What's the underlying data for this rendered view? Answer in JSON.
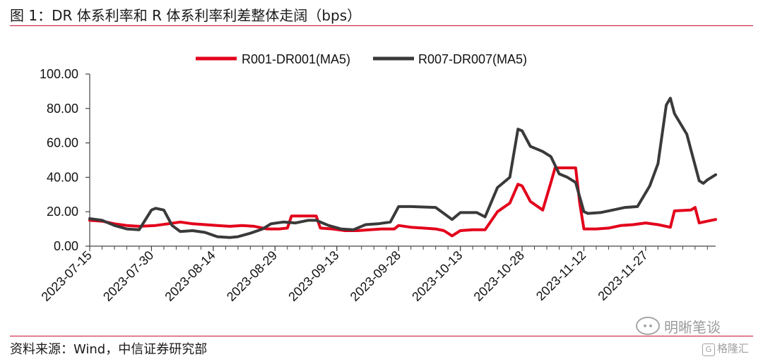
{
  "header": {
    "title": "图 1：DR 体系利率和 R 体系利率利差整体走阔（bps）"
  },
  "footer": {
    "source": "资料来源：Wind，中信证券研究部"
  },
  "watermark": {
    "brand": "明晰笔谈",
    "site": "格隆汇",
    "site_glyph": "G"
  },
  "colors": {
    "series1": "#e3001b",
    "series2": "#3a3a3a",
    "rule": "#c8102e"
  },
  "chart_data": {
    "type": "line",
    "title": "",
    "xlabel": "",
    "ylabel": "",
    "ylim": [
      0,
      100
    ],
    "yticks": [
      "0.00",
      "20.00",
      "40.00",
      "60.00",
      "80.00",
      "100.00"
    ],
    "x_start": "2023-07-15",
    "x_end": "2023-12-14",
    "xtick_labels": [
      "2023-07-15",
      "2023-07-30",
      "2023-08-14",
      "2023-08-29",
      "2023-09-13",
      "2023-09-28",
      "2023-10-13",
      "2023-10-28",
      "2023-11-12",
      "2023-11-27"
    ],
    "grid": false,
    "legend_position": "top",
    "series": [
      {
        "name": "R001-DR001(MA5)",
        "color": "#e3001b",
        "points": [
          [
            "2023-07-15",
            15
          ],
          [
            "2023-07-18",
            14.5
          ],
          [
            "2023-07-21",
            13
          ],
          [
            "2023-07-24",
            12
          ],
          [
            "2023-07-27",
            11.5
          ],
          [
            "2023-07-31",
            12
          ],
          [
            "2023-08-03",
            13
          ],
          [
            "2023-08-06",
            14
          ],
          [
            "2023-08-09",
            13
          ],
          [
            "2023-08-12",
            12.5
          ],
          [
            "2023-08-15",
            12
          ],
          [
            "2023-08-18",
            11.5
          ],
          [
            "2023-08-21",
            12
          ],
          [
            "2023-08-24",
            11.5
          ],
          [
            "2023-08-27",
            10
          ],
          [
            "2023-08-30",
            10
          ],
          [
            "2023-09-01",
            10.5
          ],
          [
            "2023-09-02",
            17.5
          ],
          [
            "2023-09-08",
            17.5
          ],
          [
            "2023-09-09",
            10.5
          ],
          [
            "2023-09-12",
            10
          ],
          [
            "2023-09-15",
            9
          ],
          [
            "2023-09-18",
            9
          ],
          [
            "2023-09-21",
            9.5
          ],
          [
            "2023-09-24",
            10
          ],
          [
            "2023-09-27",
            10
          ],
          [
            "2023-09-28",
            12
          ],
          [
            "2023-10-01",
            11
          ],
          [
            "2023-10-04",
            10.5
          ],
          [
            "2023-10-07",
            10
          ],
          [
            "2023-10-09",
            9
          ],
          [
            "2023-10-11",
            6
          ],
          [
            "2023-10-13",
            9
          ],
          [
            "2023-10-16",
            9.5
          ],
          [
            "2023-10-19",
            9.5
          ],
          [
            "2023-10-22",
            20
          ],
          [
            "2023-10-25",
            25
          ],
          [
            "2023-10-27",
            36
          ],
          [
            "2023-10-28",
            35
          ],
          [
            "2023-10-30",
            26
          ],
          [
            "2023-11-02",
            21
          ],
          [
            "2023-11-04",
            37
          ],
          [
            "2023-11-05",
            45.5
          ],
          [
            "2023-11-10",
            45.5
          ],
          [
            "2023-11-11",
            25
          ],
          [
            "2023-11-12",
            10
          ],
          [
            "2023-11-15",
            10
          ],
          [
            "2023-11-18",
            10.5
          ],
          [
            "2023-11-21",
            12
          ],
          [
            "2023-11-24",
            12.5
          ],
          [
            "2023-11-27",
            13.5
          ],
          [
            "2023-11-30",
            12.5
          ],
          [
            "2023-12-03",
            11
          ],
          [
            "2023-12-04",
            20.5
          ],
          [
            "2023-12-08",
            21
          ],
          [
            "2023-12-09",
            22.5
          ],
          [
            "2023-12-10",
            13.5
          ],
          [
            "2023-12-12",
            14.5
          ],
          [
            "2023-12-14",
            15.5
          ]
        ]
      },
      {
        "name": "R007-DR007(MA5)",
        "color": "#3a3a3a",
        "points": [
          [
            "2023-07-15",
            16
          ],
          [
            "2023-07-18",
            15
          ],
          [
            "2023-07-21",
            12
          ],
          [
            "2023-07-24",
            10
          ],
          [
            "2023-07-27",
            9.5
          ],
          [
            "2023-07-30",
            21
          ],
          [
            "2023-07-31",
            22
          ],
          [
            "2023-08-02",
            21
          ],
          [
            "2023-08-04",
            12
          ],
          [
            "2023-08-06",
            8.5
          ],
          [
            "2023-08-09",
            9
          ],
          [
            "2023-08-12",
            8
          ],
          [
            "2023-08-15",
            5.5
          ],
          [
            "2023-08-18",
            5
          ],
          [
            "2023-08-20",
            5.5
          ],
          [
            "2023-08-23",
            7.5
          ],
          [
            "2023-08-26",
            10
          ],
          [
            "2023-08-28",
            13
          ],
          [
            "2023-08-31",
            14
          ],
          [
            "2023-09-03",
            13.5
          ],
          [
            "2023-09-06",
            15
          ],
          [
            "2023-09-08",
            15
          ],
          [
            "2023-09-11",
            12
          ],
          [
            "2023-09-14",
            10
          ],
          [
            "2023-09-17",
            9.5
          ],
          [
            "2023-09-20",
            12.5
          ],
          [
            "2023-09-23",
            13
          ],
          [
            "2023-09-26",
            14
          ],
          [
            "2023-09-28",
            23
          ],
          [
            "2023-10-01",
            23
          ],
          [
            "2023-10-07",
            22.5
          ],
          [
            "2023-10-09",
            19
          ],
          [
            "2023-10-11",
            15.5
          ],
          [
            "2023-10-13",
            19.5
          ],
          [
            "2023-10-17",
            19.5
          ],
          [
            "2023-10-19",
            17
          ],
          [
            "2023-10-22",
            34
          ],
          [
            "2023-10-25",
            40
          ],
          [
            "2023-10-27",
            68
          ],
          [
            "2023-10-28",
            67
          ],
          [
            "2023-10-30",
            58
          ],
          [
            "2023-11-02",
            55
          ],
          [
            "2023-11-04",
            52
          ],
          [
            "2023-11-06",
            42
          ],
          [
            "2023-11-08",
            40
          ],
          [
            "2023-11-10",
            37
          ],
          [
            "2023-11-12",
            20
          ],
          [
            "2023-11-13",
            19
          ],
          [
            "2023-11-16",
            19.5
          ],
          [
            "2023-11-19",
            21
          ],
          [
            "2023-11-22",
            22.5
          ],
          [
            "2023-11-25",
            23
          ],
          [
            "2023-11-28",
            35
          ],
          [
            "2023-11-30",
            48
          ],
          [
            "2023-12-02",
            82
          ],
          [
            "2023-12-03",
            86
          ],
          [
            "2023-12-04",
            77
          ],
          [
            "2023-12-07",
            65
          ],
          [
            "2023-12-08",
            56
          ],
          [
            "2023-12-10",
            38
          ],
          [
            "2023-12-11",
            36.5
          ],
          [
            "2023-12-12",
            38.5
          ],
          [
            "2023-12-14",
            41.5
          ]
        ]
      }
    ]
  }
}
